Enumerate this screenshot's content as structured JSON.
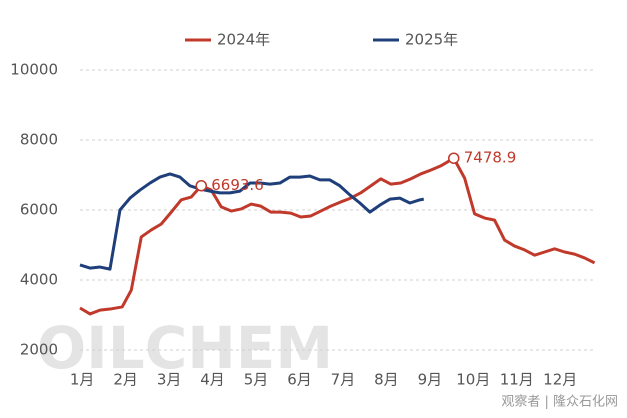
{
  "chart_data": {
    "type": "line",
    "xlim": [
      0.95,
      12.8
    ],
    "xticks": [
      {
        "value": 1,
        "label": "1月"
      },
      {
        "value": 2,
        "label": "2月"
      },
      {
        "value": 3,
        "label": "3月"
      },
      {
        "value": 4,
        "label": "4月"
      },
      {
        "value": 5,
        "label": "5月"
      },
      {
        "value": 6,
        "label": "6月"
      },
      {
        "value": 7,
        "label": "7月"
      },
      {
        "value": 8,
        "label": "8月"
      },
      {
        "value": 9,
        "label": "9月"
      },
      {
        "value": 10,
        "label": "10月"
      },
      {
        "value": 11,
        "label": "11月"
      },
      {
        "value": 12,
        "label": "12月"
      }
    ],
    "ylim": [
      2000,
      10000
    ],
    "yticks": [
      2000,
      4000,
      6000,
      8000,
      10000
    ],
    "grid": true,
    "series": [
      {
        "name": "2024年",
        "color": "#c0392b",
        "x": [
          0.95,
          1.18,
          1.41,
          1.64,
          1.92,
          2.13,
          2.36,
          2.59,
          2.82,
          3.05,
          3.28,
          3.51,
          3.74,
          3.97,
          4.2,
          4.43,
          4.66,
          4.89,
          5.11,
          5.34,
          5.57,
          5.8,
          6.03,
          6.26,
          6.49,
          6.72,
          6.95,
          7.18,
          7.41,
          7.64,
          7.87,
          8.1,
          8.33,
          8.56,
          8.79,
          9.02,
          9.25,
          9.55,
          9.8,
          10.03,
          10.26,
          10.49,
          10.72,
          10.95,
          11.18,
          11.41,
          11.64,
          11.87,
          12.1,
          12.33,
          12.56,
          12.79
        ],
        "values": [
          3200,
          3030,
          3140,
          3170,
          3230,
          3710,
          5230,
          5430,
          5600,
          5940,
          6290,
          6370,
          6693.6,
          6570,
          6090,
          5970,
          6030,
          6170,
          6110,
          5940,
          5940,
          5910,
          5800,
          5830,
          5970,
          6110,
          6230,
          6340,
          6490,
          6690,
          6890,
          6740,
          6770,
          6890,
          7030,
          7140,
          7260,
          7478.9,
          6910,
          5890,
          5770,
          5710,
          5140,
          4970,
          4860,
          4710,
          4800,
          4890,
          4800,
          4740,
          4630,
          4490
        ]
      },
      {
        "name": "2025年",
        "color": "#1f3f7a",
        "x": [
          0.95,
          1.18,
          1.41,
          1.64,
          1.87,
          2.1,
          2.33,
          2.56,
          2.79,
          3.02,
          3.25,
          3.48,
          3.71,
          3.94,
          4.17,
          4.4,
          4.63,
          4.86,
          5.09,
          5.32,
          5.55,
          5.78,
          6.01,
          6.24,
          6.47,
          6.7,
          6.93,
          7.16,
          7.39,
          7.62,
          7.85,
          8.08,
          8.31,
          8.54,
          8.77,
          8.86
        ],
        "values": [
          4430,
          4340,
          4370,
          4310,
          6000,
          6340,
          6570,
          6770,
          6940,
          7030,
          6940,
          6690,
          6600,
          6540,
          6490,
          6490,
          6540,
          6770,
          6770,
          6740,
          6770,
          6940,
          6940,
          6970,
          6860,
          6860,
          6690,
          6430,
          6200,
          5940,
          6140,
          6310,
          6340,
          6200,
          6290,
          6310
        ]
      }
    ],
    "annotations": [
      {
        "x": 3.74,
        "y": 6693.6,
        "color": "#c0392b"
      },
      {
        "x": 9.55,
        "y": 7478.9,
        "color": "#c0392b"
      }
    ],
    "watermark": "OILCHEM",
    "source": "观察者 | 隆众石化网"
  }
}
